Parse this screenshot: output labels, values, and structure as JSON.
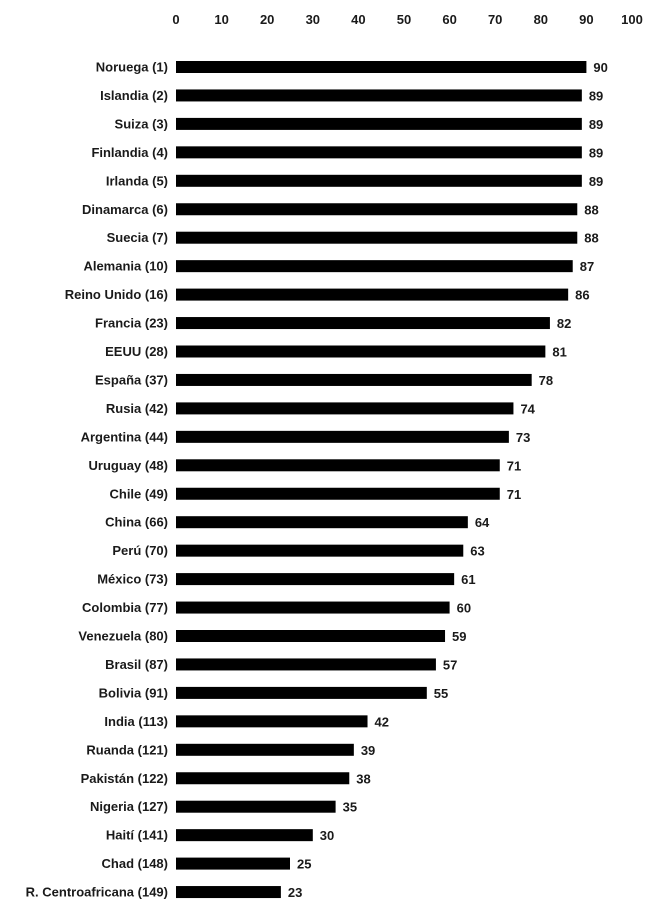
{
  "chart_data": {
    "type": "bar",
    "orientation": "horizontal",
    "title": "",
    "xlabel": "",
    "ylabel": "",
    "xlim": [
      0,
      100
    ],
    "x_ticks": [
      0,
      10,
      20,
      30,
      40,
      50,
      60,
      70,
      80,
      90,
      100
    ],
    "x_axis_position": "top",
    "grid": false,
    "legend": "none",
    "bar_color": "#000000",
    "data_labels": true,
    "categories": [
      "Noruega (1)",
      "Islandia (2)",
      "Suiza (3)",
      "Finlandia (4)",
      "Irlanda (5)",
      "Dinamarca (6)",
      "Suecia (7)",
      "Alemania (10)",
      "Reino Unido (16)",
      "Francia (23)",
      "EEUU (28)",
      "España (37)",
      "Rusia (42)",
      "Argentina (44)",
      "Uruguay (48)",
      "Chile (49)",
      "China (66)",
      "Perú (70)",
      "México (73)",
      "Colombia (77)",
      "Venezuela (80)",
      "Brasil (87)",
      "Bolivia (91)",
      "India (113)",
      "Ruanda (121)",
      "Pakistán (122)",
      "Nigeria (127)",
      "Haití (141)",
      "Chad (148)",
      "R. Centroafricana (149)"
    ],
    "values": [
      90,
      89,
      89,
      89,
      89,
      88,
      88,
      87,
      86,
      82,
      81,
      78,
      74,
      73,
      71,
      71,
      64,
      63,
      61,
      60,
      59,
      57,
      55,
      42,
      39,
      38,
      35,
      30,
      25,
      23
    ]
  }
}
